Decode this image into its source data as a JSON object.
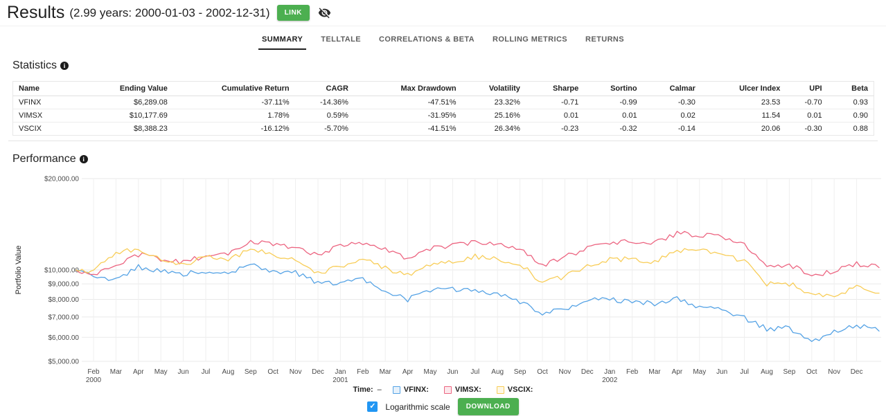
{
  "header": {
    "title": "Results",
    "subtitle": "(2.99 years: 2000-01-03 - 2002-12-31)",
    "link_button": "LINK"
  },
  "tabs": [
    {
      "label": "SUMMARY",
      "active": true
    },
    {
      "label": "TELLTALE",
      "active": false
    },
    {
      "label": "CORRELATIONS & BETA",
      "active": false
    },
    {
      "label": "ROLLING METRICS",
      "active": false
    },
    {
      "label": "RETURNS",
      "active": false
    }
  ],
  "statistics": {
    "heading": "Statistics",
    "columns": [
      "Name",
      "Ending Value",
      "Cumulative Return",
      "CAGR",
      "Max Drawdown",
      "Volatility",
      "Sharpe",
      "Sortino",
      "Calmar",
      "Ulcer Index",
      "UPI",
      "Beta"
    ],
    "rows": [
      [
        "VFINX",
        "$6,289.08",
        "-37.11%",
        "-14.36%",
        "-47.51%",
        "23.32%",
        "-0.71",
        "-0.99",
        "-0.30",
        "23.53",
        "-0.70",
        "0.93"
      ],
      [
        "VIMSX",
        "$10,177.69",
        "1.78%",
        "0.59%",
        "-31.95%",
        "25.16%",
        "0.01",
        "0.01",
        "0.02",
        "11.54",
        "0.01",
        "0.90"
      ],
      [
        "VSCIX",
        "$8,388.23",
        "-16.12%",
        "-5.70%",
        "-41.51%",
        "26.34%",
        "-0.23",
        "-0.32",
        "-0.14",
        "20.06",
        "-0.30",
        "0.88"
      ]
    ]
  },
  "performance": {
    "heading": "Performance"
  },
  "chart_data": {
    "type": "line",
    "title": "Performance",
    "ylabel": "Portfolio Value",
    "y_scale": "logarithmic",
    "x_range": [
      "2000-01-03",
      "2002-12-31"
    ],
    "grid": true,
    "y_axis": {
      "ticks": [
        {
          "value": 20000,
          "label": "$20,000.00"
        },
        {
          "value": 10000,
          "label": "$10,000.00"
        },
        {
          "value": 9000,
          "label": "$9,000.00"
        },
        {
          "value": 8000,
          "label": "$8,000.00"
        },
        {
          "value": 7000,
          "label": "$7,000.00"
        },
        {
          "value": 6000,
          "label": "$6,000.00"
        },
        {
          "value": 5000,
          "label": "$5,000.00"
        }
      ]
    },
    "x_axis": {
      "ticks": [
        {
          "label": "Feb",
          "year": "2000"
        },
        {
          "label": "Mar"
        },
        {
          "label": "Apr"
        },
        {
          "label": "May"
        },
        {
          "label": "Jun"
        },
        {
          "label": "Jul"
        },
        {
          "label": "Aug"
        },
        {
          "label": "Sep"
        },
        {
          "label": "Oct"
        },
        {
          "label": "Nov"
        },
        {
          "label": "Dec"
        },
        {
          "label": "Jan",
          "year": "2001"
        },
        {
          "label": "Feb"
        },
        {
          "label": "Mar"
        },
        {
          "label": "Apr"
        },
        {
          "label": "May"
        },
        {
          "label": "Jun"
        },
        {
          "label": "Jul"
        },
        {
          "label": "Aug"
        },
        {
          "label": "Sep"
        },
        {
          "label": "Oct"
        },
        {
          "label": "Nov"
        },
        {
          "label": "Dec"
        },
        {
          "label": "Jan",
          "year": "2002"
        },
        {
          "label": "Feb"
        },
        {
          "label": "Mar"
        },
        {
          "label": "Apr"
        },
        {
          "label": "May"
        },
        {
          "label": "Jun"
        },
        {
          "label": "Jul"
        },
        {
          "label": "Aug"
        },
        {
          "label": "Sep"
        },
        {
          "label": "Oct"
        },
        {
          "label": "Nov"
        },
        {
          "label": "Dec"
        }
      ]
    },
    "series": [
      {
        "name": "VFINX",
        "color": "#54a2e5",
        "values": [
          10000,
          9500,
          9310,
          10220,
          9910,
          9700,
          9940,
          9780,
          10390,
          9840,
          9800,
          9030,
          9080,
          9390,
          8530,
          7990,
          8610,
          8670,
          8460,
          8380,
          7860,
          7220,
          7360,
          7920,
          7990,
          7870,
          7720,
          8010,
          7520,
          7460,
          6930,
          6390,
          6430,
          5740,
          6240,
          6600,
          6289.08
        ]
      },
      {
        "name": "VIMSX",
        "color": "#ec6480",
        "values": [
          10000,
          9700,
          10350,
          11230,
          10830,
          10640,
          11100,
          11210,
          12300,
          12190,
          11890,
          11210,
          12010,
          12210,
          11690,
          10920,
          11810,
          12090,
          12300,
          12180,
          11780,
          10320,
          11020,
          11830,
          12300,
          12390,
          12380,
          13180,
          13080,
          12870,
          12080,
          10330,
          10400,
          9620,
          9880,
          10490,
          10177.69
        ]
      },
      {
        "name": "VSCIX",
        "color": "#f8cd57",
        "values": [
          10000,
          9890,
          11480,
          11690,
          10880,
          10320,
          11190,
          10840,
          11620,
          11300,
          10780,
          9720,
          10310,
          10820,
          10110,
          9590,
          10420,
          10690,
          11080,
          10880,
          10480,
          9030,
          9510,
          10230,
          10780,
          10890,
          10630,
          11580,
          11680,
          11170,
          10690,
          9010,
          9010,
          8320,
          8220,
          8810,
          8388.23
        ]
      }
    ]
  },
  "legend": {
    "time_label": "Time:",
    "time_value": "–",
    "items": [
      {
        "label": "VFINX:",
        "color": "#54a2e5"
      },
      {
        "label": "VIMSX:",
        "color": "#ec6480"
      },
      {
        "label": "VSCIX:",
        "color": "#f8cd57"
      }
    ]
  },
  "controls": {
    "log_scale_label": "Logarithmic scale",
    "log_scale_checked": true,
    "download_button": "DOWNLOAD"
  },
  "colors": {
    "accent_green": "#4caf50",
    "checkbox_blue": "#2196f3"
  }
}
